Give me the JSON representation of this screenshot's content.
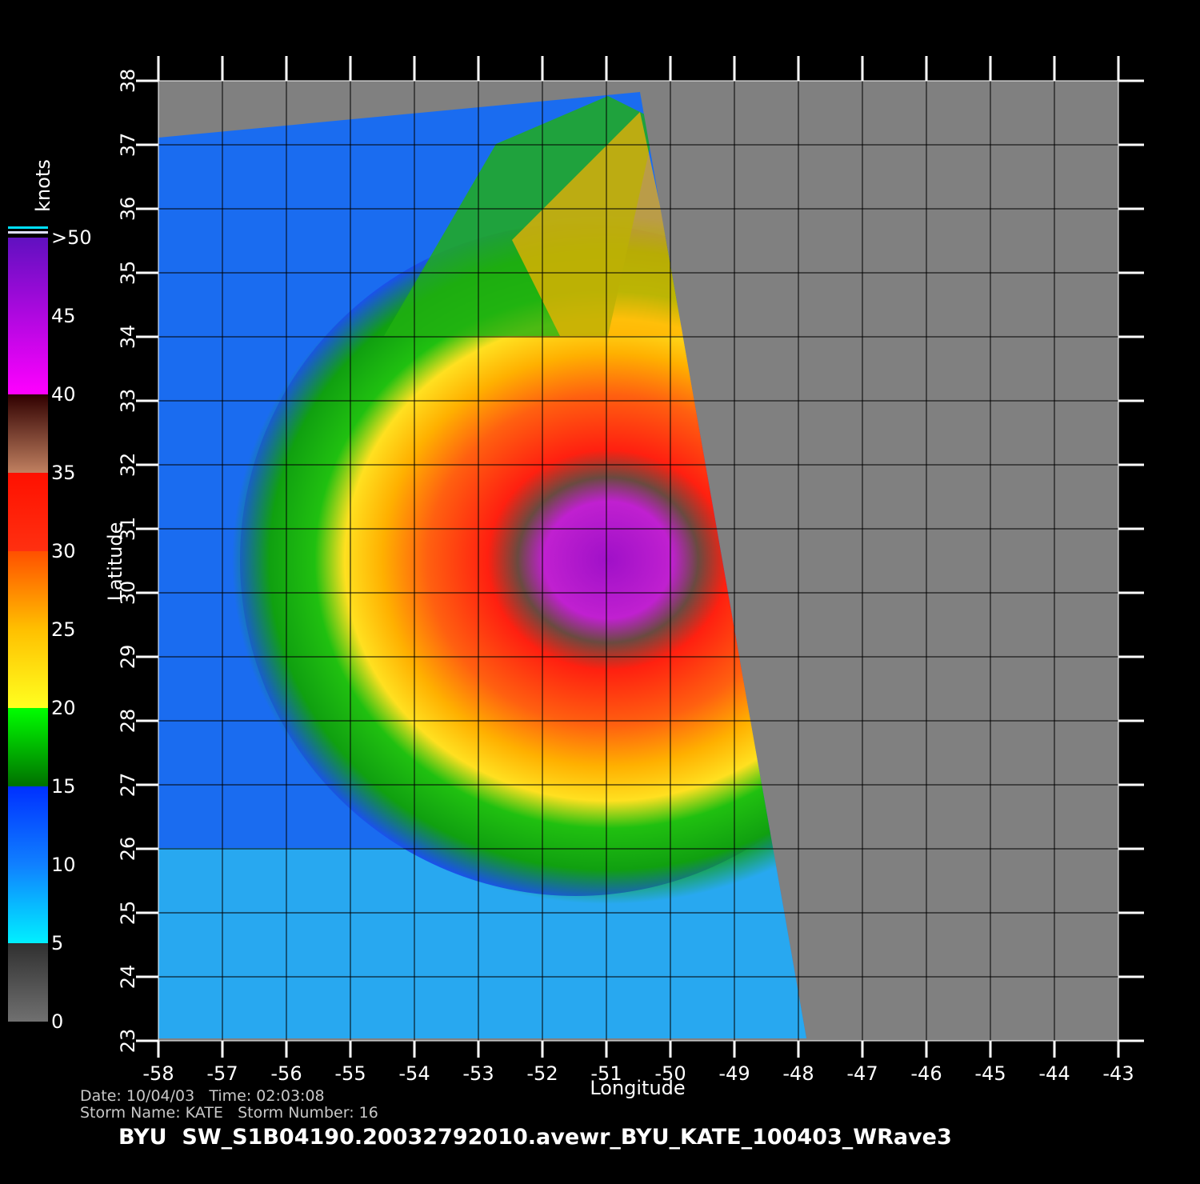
{
  "map": {
    "x_axis": {
      "label": "Longitude",
      "lim": [
        -58,
        -43
      ],
      "ticks": [
        -58,
        -57,
        -56,
        -55,
        -54,
        -53,
        -52,
        -51,
        -50,
        -49,
        -48,
        -47,
        -46,
        -45,
        -44,
        -43
      ]
    },
    "y_axis": {
      "label": "Latitude",
      "lim": [
        23,
        38
      ],
      "ticks": [
        23,
        24,
        25,
        26,
        27,
        28,
        29,
        30,
        31,
        32,
        33,
        34,
        35,
        36,
        37,
        38
      ]
    },
    "colorbar": {
      "title": "knots",
      "lim": [
        0,
        50
      ],
      "ticks": [
        0,
        5,
        10,
        15,
        20,
        25,
        30,
        35,
        40,
        45,
        {
          "value": 50,
          "label": ">50"
        }
      ]
    },
    "info": {
      "date_label": "Date:",
      "date": "10/04/03",
      "time_label": "Time:",
      "time": "02:03:08",
      "storm_name_label": "Storm Name:",
      "storm_name": "KATE",
      "storm_number_label": "Storm Number:",
      "storm_number": "16"
    },
    "footer": "BYU  SW_S1B04190.20032792010.avewr_BYU_KATE_100403_WRave3"
  }
}
